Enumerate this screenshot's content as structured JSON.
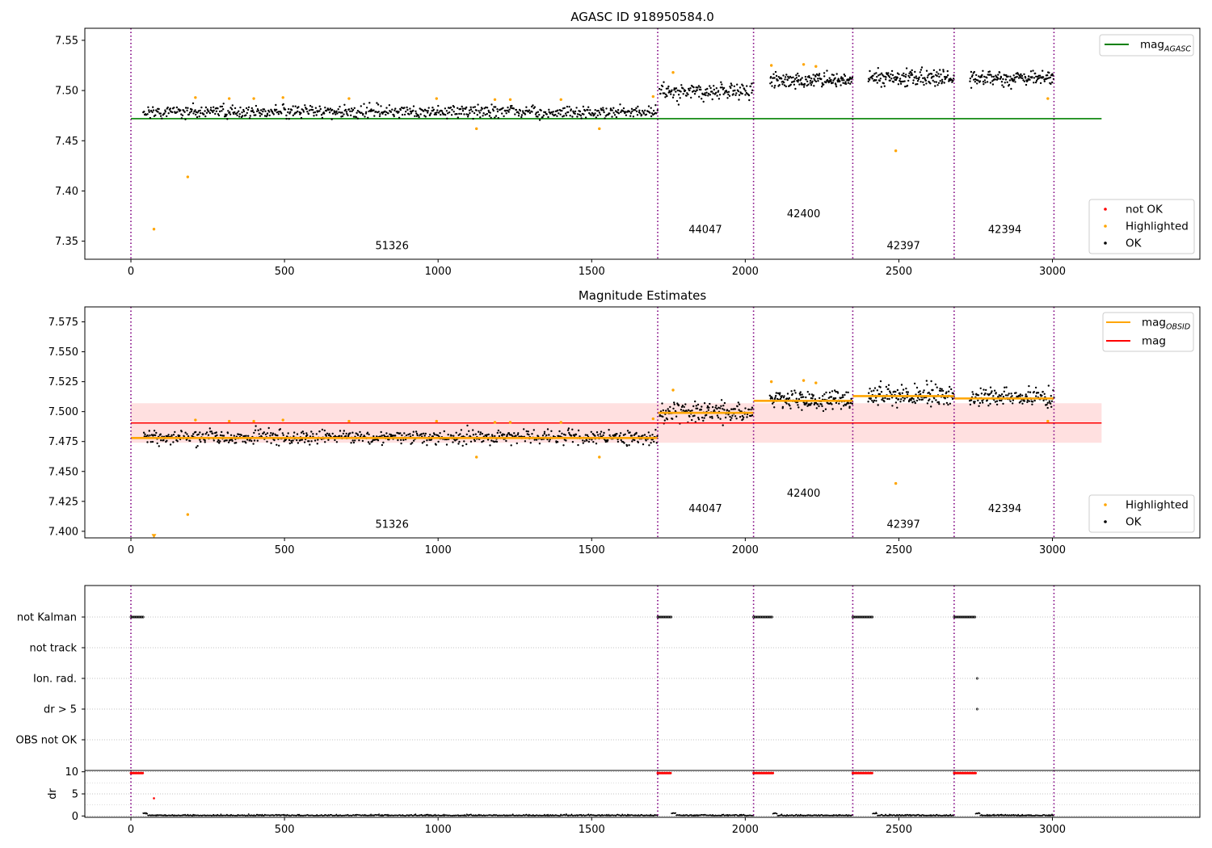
{
  "chart_data": [
    {
      "type": "scatter",
      "title": "AGASC ID 918950584.0",
      "xlim": [
        -150,
        3480
      ],
      "ylim": [
        7.332,
        7.562
      ],
      "xticks": [
        0,
        500,
        1000,
        1500,
        2000,
        2500,
        3000
      ],
      "yticks": [
        7.35,
        7.4,
        7.45,
        7.5,
        7.55
      ],
      "obs_boundaries": [
        0,
        1715,
        2027,
        2350,
        2680,
        3005
      ],
      "obs_labels": [
        {
          "text": "51326",
          "x": 850,
          "y": 7.342
        },
        {
          "text": "44047",
          "x": 1870,
          "y": 7.358
        },
        {
          "text": "42400",
          "x": 2190,
          "y": 7.374
        },
        {
          "text": "42397",
          "x": 2515,
          "y": 7.342
        },
        {
          "text": "42394",
          "x": 2845,
          "y": 7.358
        }
      ],
      "reference_line": {
        "label": "mag",
        "subscript": "AGASC",
        "y": 7.472,
        "x": [
          0,
          3160
        ],
        "color": "#008000"
      },
      "observations": [
        {
          "x": [
            40,
            1715
          ],
          "mean": 7.479,
          "spread": 0.0045
        },
        {
          "x": [
            1720,
            2027
          ],
          "mean": 7.499,
          "spread": 0.006
        },
        {
          "x": [
            2080,
            2350
          ],
          "mean": 7.51,
          "spread": 0.005
        },
        {
          "x": [
            2400,
            2680
          ],
          "mean": 7.513,
          "spread": 0.006
        },
        {
          "x": [
            2730,
            3005
          ],
          "mean": 7.512,
          "spread": 0.005
        }
      ],
      "highlighted": [
        {
          "x": 75,
          "y": 7.362
        },
        {
          "x": 185,
          "y": 7.414
        },
        {
          "x": 210,
          "y": 7.493
        },
        {
          "x": 320,
          "y": 7.492
        },
        {
          "x": 400,
          "y": 7.492
        },
        {
          "x": 495,
          "y": 7.493
        },
        {
          "x": 710,
          "y": 7.492
        },
        {
          "x": 995,
          "y": 7.492
        },
        {
          "x": 1125,
          "y": 7.462
        },
        {
          "x": 1185,
          "y": 7.491
        },
        {
          "x": 1235,
          "y": 7.491
        },
        {
          "x": 1400,
          "y": 7.491
        },
        {
          "x": 1525,
          "y": 7.462
        },
        {
          "x": 1700,
          "y": 7.494
        },
        {
          "x": 1765,
          "y": 7.518
        },
        {
          "x": 2085,
          "y": 7.525
        },
        {
          "x": 2190,
          "y": 7.526
        },
        {
          "x": 2230,
          "y": 7.524
        },
        {
          "x": 2490,
          "y": 7.44
        },
        {
          "x": 2985,
          "y": 7.492
        }
      ],
      "legend_top": [
        {
          "label": "mag",
          "subscript": "AGASC",
          "color": "#008000"
        }
      ],
      "legend_bottom": [
        {
          "label": "not OK",
          "color": "#ff0000"
        },
        {
          "label": "Highlighted",
          "color": "#ffa500"
        },
        {
          "label": "OK",
          "color": "#000000"
        }
      ]
    },
    {
      "type": "scatter",
      "title": "Magnitude Estimates",
      "xlim": [
        -150,
        3480
      ],
      "ylim": [
        7.3945,
        7.5875
      ],
      "xticks": [
        0,
        500,
        1000,
        1500,
        2000,
        2500,
        3000
      ],
      "yticks": [
        7.4,
        7.425,
        7.45,
        7.475,
        7.5,
        7.525,
        7.55,
        7.575
      ],
      "obs_boundaries": [
        0,
        1715,
        2027,
        2350,
        2680,
        3005
      ],
      "obs_labels": [
        {
          "text": "51326",
          "x": 850,
          "y": 7.403
        },
        {
          "text": "44047",
          "x": 1870,
          "y": 7.416
        },
        {
          "text": "42400",
          "x": 2190,
          "y": 7.429
        },
        {
          "text": "42397",
          "x": 2515,
          "y": 7.403
        },
        {
          "text": "42394",
          "x": 2845,
          "y": 7.416
        }
      ],
      "mag": {
        "label": "mag",
        "y": 7.4905,
        "band": [
          7.474,
          7.507
        ],
        "x": [
          0,
          3160
        ],
        "color": "#ff0000"
      },
      "mag_obsid": {
        "label": "mag",
        "subscript": "OBSID",
        "color": "#ffa500",
        "segments": [
          {
            "x": [
              0,
              1715
            ],
            "y": 7.478
          },
          {
            "x": [
              1715,
              2027
            ],
            "y": 7.499
          },
          {
            "x": [
              2027,
              2350
            ],
            "y": 7.509
          },
          {
            "x": [
              2350,
              2680
            ],
            "y": 7.513
          },
          {
            "x": [
              2680,
              3005
            ],
            "y": 7.511
          }
        ]
      },
      "legend_top": [
        {
          "label": "mag",
          "subscript": "OBSID",
          "color": "#ffa500"
        },
        {
          "label": "mag",
          "color": "#ff0000"
        }
      ],
      "legend_bottom": [
        {
          "label": "Highlighted",
          "color": "#ffa500"
        },
        {
          "label": "OK",
          "color": "#000000"
        }
      ]
    },
    {
      "type": "scatter",
      "flag_rows": [
        "not Kalman",
        "not track",
        "Ion. rad.",
        "dr > 5",
        "OBS not OK"
      ],
      "not_kalman_runs": [
        [
          0,
          40
        ],
        [
          1715,
          1760
        ],
        [
          2027,
          2090
        ],
        [
          2350,
          2415
        ],
        [
          2680,
          2750
        ]
      ],
      "ion_rad_points": [
        2755
      ],
      "dr_gt5_points": [
        2755
      ],
      "xlim": [
        -150,
        3480
      ],
      "xticks": [
        0,
        500,
        1000,
        1500,
        2000,
        2500,
        3000
      ],
      "obs_boundaries": [
        0,
        1715,
        2027,
        2350,
        2680,
        3005
      ]
    },
    {
      "type": "scatter",
      "ylabel": "dr",
      "xlim": [
        -150,
        3480
      ],
      "ylim": [
        -0.3,
        10.3
      ],
      "xticks": [
        0,
        500,
        1000,
        1500,
        2000,
        2500,
        3000
      ],
      "yticks": [
        0,
        5,
        10
      ],
      "obs_boundaries": [
        0,
        1715,
        2027,
        2350,
        2680,
        3005
      ],
      "dr_high_runs": [
        [
          0,
          40
        ],
        [
          1715,
          1760
        ],
        [
          2027,
          2090
        ],
        [
          2350,
          2415
        ],
        [
          2680,
          2750
        ]
      ],
      "dr_outlier": {
        "x": 75,
        "y": 4.0
      },
      "ok_segments": [
        [
          40,
          1715
        ],
        [
          1760,
          2027
        ],
        [
          2090,
          2350
        ],
        [
          2415,
          2680
        ],
        [
          2750,
          3005
        ]
      ]
    }
  ]
}
